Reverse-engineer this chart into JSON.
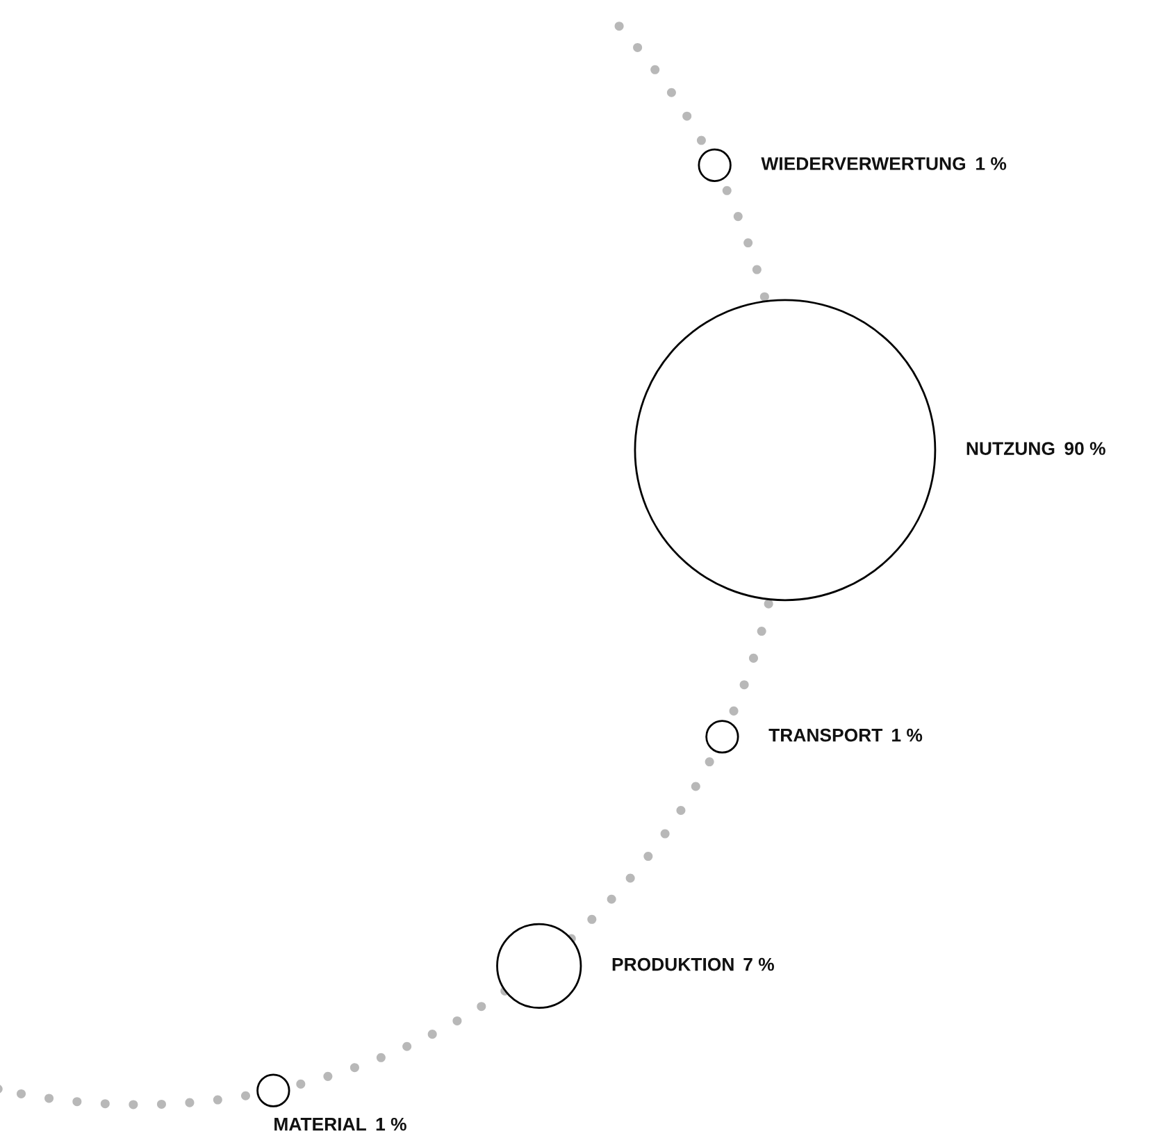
{
  "chart_data": {
    "type": "other",
    "categories": [
      "WIEDERVERWERTUNG",
      "NUTZUNG",
      "TRANSPORT",
      "PRODUKTION",
      "MATERIAL"
    ],
    "values": [
      1,
      90,
      1,
      7,
      1
    ],
    "value_labels": [
      "1 %",
      "90 %",
      "1 %",
      "7 %",
      "1 %"
    ],
    "color": "#000000"
  }
}
